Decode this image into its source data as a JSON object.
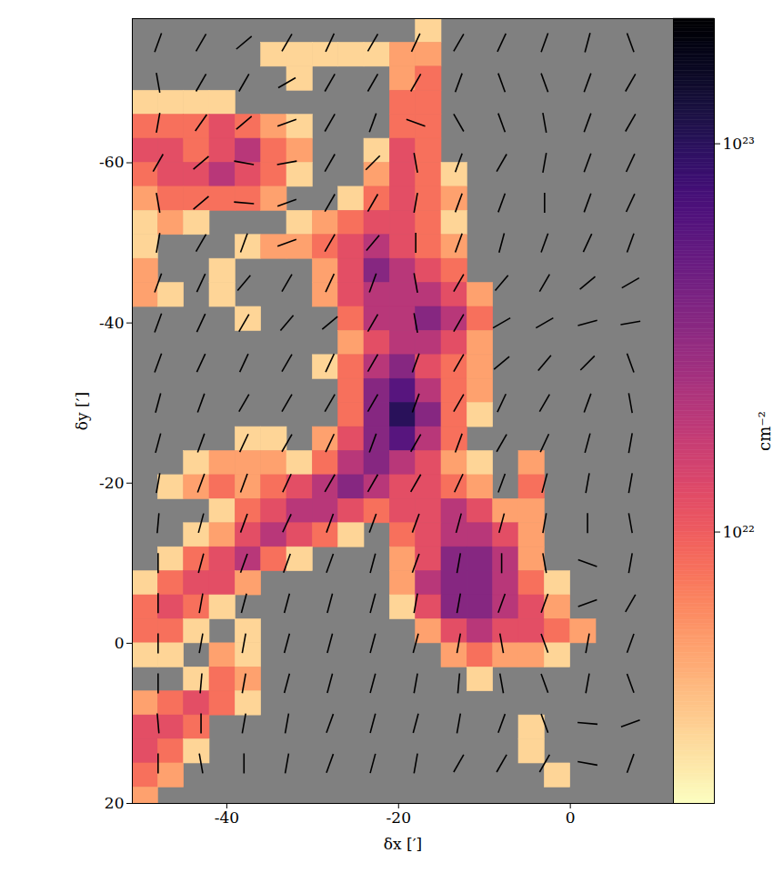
{
  "chart_data": {
    "type": "heatmap",
    "xlabel": "δx [′]",
    "ylabel": "δy [′]",
    "xlim": [
      -51,
      12
    ],
    "ylim": [
      -78,
      20
    ],
    "xticks": [
      -40,
      -20,
      0
    ],
    "yticks": [
      -60,
      -40,
      -20,
      0,
      20
    ],
    "density": {
      "x": [
        -49.5,
        -46.5,
        -43.5,
        -40.5,
        -37.5,
        -34.5,
        -31.5,
        -28.5,
        -25.5,
        -22.5,
        -19.5,
        -16.5,
        -13.5,
        -10.5,
        -7.5,
        -4.5,
        -1.5,
        1.5,
        4.5,
        7.5,
        10.5
      ],
      "y": [
        -76.5,
        -73.5,
        -70.5,
        -67.5,
        -64.5,
        -61.5,
        -58.5,
        -55.5,
        -52.5,
        -49.5,
        -46.5,
        -43.5,
        -40.5,
        -37.5,
        -34.5,
        -31.5,
        -28.5,
        -25.5,
        -22.5,
        -19.5,
        -16.5,
        -13.5,
        -10.5,
        -7.5,
        -4.5,
        -1.5,
        1.5,
        4.5,
        7.5,
        10.5,
        13.5,
        16.5,
        19.5
      ],
      "values": [
        [
          null,
          null,
          null,
          null,
          null,
          null,
          null,
          null,
          null,
          null,
          null,
          3e+21,
          null,
          null,
          null,
          null,
          null,
          null,
          null,
          null,
          null
        ],
        [
          null,
          null,
          null,
          null,
          null,
          3e+21,
          3e+21,
          3e+21,
          3e+21,
          3e+21,
          5e+21,
          5e+21,
          null,
          null,
          null,
          null,
          null,
          null,
          null,
          null,
          null
        ],
        [
          null,
          null,
          null,
          null,
          null,
          null,
          3e+21,
          null,
          null,
          null,
          5e+21,
          8e+21,
          null,
          null,
          null,
          null,
          null,
          null,
          null,
          null,
          null
        ],
        [
          3e+21,
          3e+21,
          3e+21,
          3e+21,
          null,
          null,
          null,
          null,
          null,
          null,
          8e+21,
          8e+21,
          null,
          null,
          null,
          null,
          null,
          null,
          null,
          null,
          null
        ],
        [
          8e+21,
          8e+21,
          8e+21,
          1.2e+22,
          8e+21,
          5e+21,
          3e+21,
          null,
          null,
          null,
          8e+21,
          8e+21,
          null,
          null,
          null,
          null,
          null,
          null,
          null,
          null,
          null
        ],
        [
          1.2e+22,
          1.2e+22,
          8e+21,
          1.2e+22,
          2e+22,
          8e+21,
          5e+21,
          null,
          null,
          3e+21,
          1.2e+22,
          8e+21,
          null,
          null,
          null,
          null,
          null,
          null,
          null,
          null,
          null
        ],
        [
          8e+21,
          1.2e+22,
          1.2e+22,
          2e+22,
          1.2e+22,
          8e+21,
          3e+21,
          null,
          null,
          5e+21,
          1.2e+22,
          8e+21,
          3e+21,
          null,
          null,
          null,
          null,
          null,
          null,
          null,
          null
        ],
        [
          5e+21,
          8e+21,
          8e+21,
          8e+21,
          8e+21,
          5e+21,
          null,
          null,
          3e+21,
          8e+21,
          1.2e+22,
          8e+21,
          5e+21,
          null,
          null,
          null,
          null,
          null,
          null,
          null,
          null
        ],
        [
          3e+21,
          5e+21,
          3e+21,
          null,
          null,
          null,
          3e+21,
          5e+21,
          8e+21,
          1.2e+22,
          1.2e+22,
          8e+21,
          3e+21,
          null,
          null,
          null,
          null,
          null,
          null,
          null,
          null
        ],
        [
          3e+21,
          null,
          null,
          null,
          3e+21,
          5e+21,
          5e+21,
          8e+21,
          1.2e+22,
          2e+22,
          1.2e+22,
          8e+21,
          5e+21,
          null,
          null,
          null,
          null,
          null,
          null,
          null,
          null
        ],
        [
          5e+21,
          null,
          null,
          3e+21,
          null,
          null,
          null,
          5e+21,
          1.2e+22,
          3.5e+22,
          2e+22,
          1.2e+22,
          8e+21,
          null,
          null,
          null,
          null,
          null,
          null,
          null,
          null
        ],
        [
          5e+21,
          3e+21,
          null,
          3e+21,
          null,
          null,
          null,
          5e+21,
          1.2e+22,
          2e+22,
          2e+22,
          2e+22,
          1.2e+22,
          5e+21,
          null,
          null,
          null,
          null,
          null,
          null,
          null
        ],
        [
          null,
          null,
          null,
          null,
          3e+21,
          null,
          null,
          null,
          8e+21,
          2e+22,
          2e+22,
          3.5e+22,
          2e+22,
          8e+21,
          null,
          null,
          null,
          null,
          null,
          null,
          null
        ],
        [
          null,
          null,
          null,
          null,
          null,
          null,
          null,
          null,
          5e+21,
          1.2e+22,
          2e+22,
          2e+22,
          1.2e+22,
          5e+21,
          null,
          null,
          null,
          null,
          null,
          null,
          null
        ],
        [
          null,
          null,
          null,
          null,
          null,
          null,
          null,
          3e+21,
          8e+21,
          2e+22,
          3.5e+22,
          1.2e+22,
          8e+21,
          5e+21,
          null,
          null,
          null,
          null,
          null,
          null,
          null
        ],
        [
          null,
          null,
          null,
          null,
          null,
          null,
          null,
          null,
          8e+21,
          3.5e+22,
          6e+22,
          2e+22,
          8e+21,
          5e+21,
          null,
          null,
          null,
          null,
          null,
          null,
          null
        ],
        [
          null,
          null,
          null,
          null,
          null,
          null,
          null,
          null,
          8e+21,
          3.5e+22,
          1e+23,
          3.5e+22,
          8e+21,
          3e+21,
          null,
          null,
          null,
          null,
          null,
          null,
          null
        ],
        [
          null,
          null,
          null,
          null,
          3e+21,
          3e+21,
          null,
          5e+21,
          1.2e+22,
          3.5e+22,
          6e+22,
          2e+22,
          8e+21,
          null,
          null,
          null,
          null,
          null,
          null,
          null,
          null
        ],
        [
          null,
          null,
          3e+21,
          5e+21,
          5e+21,
          5e+21,
          3e+21,
          8e+21,
          2e+22,
          3.5e+22,
          2e+22,
          1.2e+22,
          5e+21,
          3e+21,
          null,
          5e+21,
          null,
          null,
          null,
          null,
          null
        ],
        [
          null,
          3e+21,
          5e+21,
          8e+21,
          5e+21,
          8e+21,
          1.2e+22,
          2e+22,
          3.5e+22,
          2e+22,
          1.2e+22,
          1.2e+22,
          8e+21,
          5e+21,
          null,
          8e+21,
          null,
          null,
          null,
          null,
          null
        ],
        [
          null,
          null,
          null,
          3e+21,
          8e+21,
          1.2e+22,
          2e+22,
          2e+22,
          1.2e+22,
          8e+21,
          1.2e+22,
          1.2e+22,
          2e+22,
          1.2e+22,
          5e+21,
          5e+21,
          null,
          null,
          null,
          null,
          null
        ],
        [
          null,
          null,
          3e+21,
          5e+21,
          1.2e+22,
          2e+22,
          1.2e+22,
          8e+21,
          3e+21,
          null,
          8e+21,
          1.2e+22,
          2e+22,
          2e+22,
          1.2e+22,
          5e+21,
          null,
          null,
          null,
          null,
          null
        ],
        [
          null,
          3e+21,
          8e+21,
          1.2e+22,
          2e+22,
          8e+21,
          3e+21,
          null,
          null,
          null,
          5e+21,
          1.2e+22,
          3.5e+22,
          3.5e+22,
          2e+22,
          5e+21,
          null,
          null,
          null,
          null,
          null
        ],
        [
          3e+21,
          8e+21,
          1.2e+22,
          1.2e+22,
          5e+21,
          null,
          null,
          null,
          null,
          null,
          5e+21,
          2e+22,
          3.5e+22,
          3.5e+22,
          2e+22,
          8e+21,
          3e+21,
          null,
          null,
          null,
          null
        ],
        [
          8e+21,
          1.2e+22,
          8e+21,
          3e+21,
          null,
          null,
          null,
          null,
          null,
          null,
          3e+21,
          1.2e+22,
          3.5e+22,
          3.5e+22,
          2e+22,
          1.2e+22,
          5e+21,
          null,
          null,
          null,
          null
        ],
        [
          8e+21,
          8e+21,
          3e+21,
          null,
          3e+21,
          null,
          null,
          null,
          null,
          null,
          null,
          5e+21,
          1.2e+22,
          2e+22,
          1.2e+22,
          1.2e+22,
          8e+21,
          5e+21,
          null,
          null,
          null
        ],
        [
          3e+21,
          3e+21,
          null,
          5e+21,
          3e+21,
          null,
          null,
          null,
          null,
          null,
          null,
          null,
          5e+21,
          8e+21,
          5e+21,
          5e+21,
          3e+21,
          null,
          null,
          null,
          null
        ],
        [
          null,
          null,
          3e+21,
          8e+21,
          5e+21,
          null,
          null,
          null,
          null,
          null,
          null,
          null,
          null,
          3e+21,
          null,
          null,
          null,
          null,
          null,
          null,
          null
        ],
        [
          5e+21,
          8e+21,
          1.2e+22,
          8e+21,
          3e+21,
          null,
          null,
          null,
          null,
          null,
          null,
          null,
          null,
          null,
          null,
          null,
          null,
          null,
          null,
          null,
          null
        ],
        [
          1.2e+22,
          1.2e+22,
          8e+21,
          null,
          null,
          null,
          null,
          null,
          null,
          null,
          null,
          null,
          null,
          null,
          null,
          3e+21,
          null,
          null,
          null,
          null,
          null
        ],
        [
          1.2e+22,
          8e+21,
          3e+21,
          null,
          null,
          null,
          null,
          null,
          null,
          null,
          null,
          null,
          null,
          null,
          null,
          3e+21,
          null,
          null,
          null,
          null,
          null
        ],
        [
          8e+21,
          5e+21,
          null,
          null,
          null,
          null,
          null,
          null,
          null,
          null,
          null,
          null,
          null,
          null,
          null,
          null,
          3e+21,
          null,
          null,
          null,
          null
        ],
        [
          5e+21,
          null,
          null,
          null,
          null,
          null,
          null,
          null,
          null,
          null,
          null,
          null,
          null,
          null,
          null,
          null,
          null,
          null,
          null,
          null,
          null
        ]
      ]
    },
    "vectors": {
      "color": "black",
      "x": [
        -48,
        -43,
        -38,
        -33,
        -28,
        -23,
        -18,
        -13,
        -8,
        -3,
        2,
        7
      ],
      "y": [
        -75,
        -70,
        -65,
        -60,
        -55,
        -50,
        -45,
        -40,
        -35,
        -30,
        -25,
        -20,
        -15,
        -10,
        -5,
        0,
        5,
        10,
        15
      ],
      "angle": [
        [
          70,
          60,
          40,
          60,
          65,
          60,
          65,
          60,
          65,
          70,
          75,
          110
        ],
        [
          100,
          60,
          60,
          30,
          60,
          60,
          60,
          70,
          110,
          110,
          70,
          60
        ],
        [
          80,
          55,
          40,
          20,
          60,
          70,
          160,
          120,
          110,
          100,
          70,
          60
        ],
        [
          60,
          40,
          170,
          10,
          60,
          45,
          100,
          70,
          60,
          80,
          70,
          65
        ],
        [
          100,
          40,
          175,
          20,
          60,
          60,
          80,
          70,
          70,
          90,
          70,
          65
        ],
        [
          80,
          60,
          70,
          20,
          60,
          50,
          90,
          70,
          75,
          70,
          65,
          70
        ],
        [
          70,
          65,
          50,
          60,
          65,
          70,
          100,
          60,
          50,
          60,
          40,
          30
        ],
        [
          70,
          65,
          60,
          50,
          40,
          60,
          100,
          60,
          30,
          30,
          15,
          10
        ],
        [
          70,
          65,
          65,
          60,
          65,
          60,
          70,
          60,
          40,
          50,
          45,
          110
        ],
        [
          75,
          70,
          60,
          60,
          60,
          60,
          70,
          60,
          65,
          60,
          70,
          100
        ],
        [
          75,
          70,
          65,
          60,
          65,
          70,
          60,
          70,
          60,
          65,
          75,
          80
        ],
        [
          80,
          70,
          70,
          65,
          60,
          60,
          60,
          65,
          70,
          75,
          80,
          80
        ],
        [
          85,
          75,
          70,
          65,
          70,
          70,
          70,
          75,
          75,
          80,
          90,
          100
        ],
        [
          90,
          75,
          70,
          70,
          70,
          75,
          70,
          80,
          90,
          100,
          160,
          80
        ],
        [
          90,
          80,
          75,
          75,
          75,
          75,
          80,
          80,
          70,
          70,
          20,
          60
        ],
        [
          90,
          80,
          80,
          75,
          75,
          75,
          75,
          80,
          100,
          110,
          80,
          70
        ],
        [
          90,
          85,
          80,
          75,
          75,
          75,
          80,
          85,
          100,
          110,
          80,
          110
        ],
        [
          95,
          90,
          80,
          80,
          70,
          75,
          75,
          80,
          70,
          110,
          175,
          20
        ],
        [
          90,
          100,
          90,
          80,
          70,
          75,
          80,
          60,
          60,
          60,
          170,
          70
        ]
      ]
    },
    "colorbar": {
      "label": "cm⁻²",
      "log": true,
      "range": [
        2e+21,
        2.1e+23
      ],
      "ticks": [
        {
          "value": 1e+22,
          "label": "10²²"
        },
        {
          "value": 1e+23,
          "label": "10²³"
        }
      ]
    }
  }
}
